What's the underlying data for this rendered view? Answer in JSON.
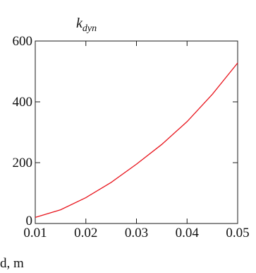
{
  "chart_data": {
    "type": "line",
    "title": {
      "main": "k",
      "subscript": "dyn"
    },
    "xlabel": "d, m",
    "ylabel": "",
    "xlim": [
      0.01,
      0.05
    ],
    "ylim": [
      0,
      600
    ],
    "x_ticks": [
      0.01,
      0.02,
      0.03,
      0.04,
      0.05
    ],
    "x_tick_labels": [
      "0.01",
      "0.02",
      "0.03",
      "0.04",
      "0.05"
    ],
    "y_ticks": [
      0,
      200,
      400,
      600
    ],
    "y_tick_labels": [
      "0",
      "200",
      "400",
      "600"
    ],
    "grid": false,
    "series": [
      {
        "color": "#e8141c",
        "x": [
          0.01,
          0.015,
          0.02,
          0.025,
          0.03,
          0.035,
          0.04,
          0.045,
          0.05
        ],
        "y": [
          20,
          45,
          85,
          135,
          195,
          260,
          335,
          425,
          528
        ]
      }
    ]
  }
}
